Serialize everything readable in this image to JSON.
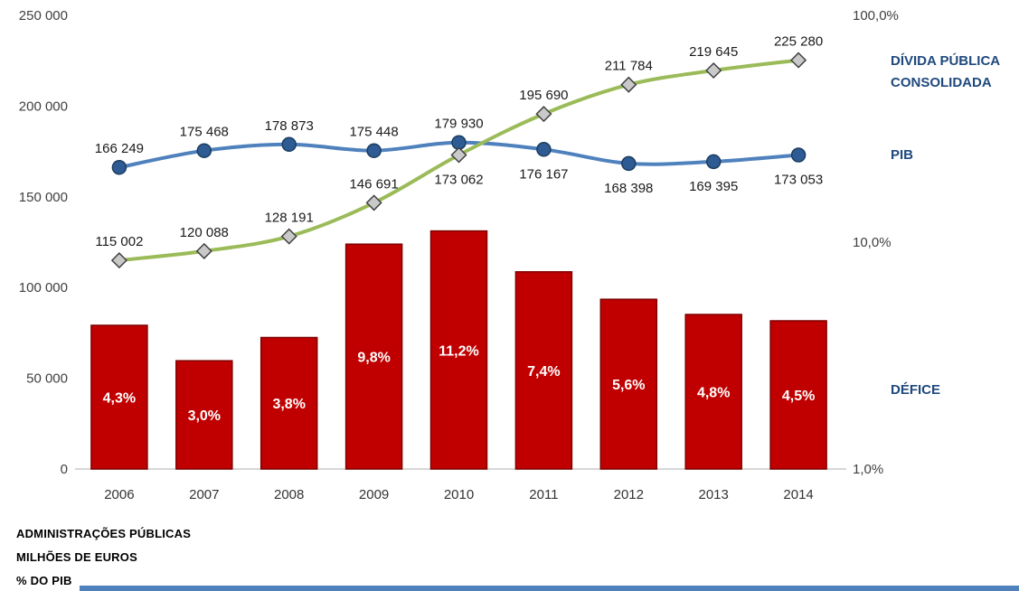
{
  "chart_data": {
    "type": "combo",
    "title": "",
    "categories": [
      "2006",
      "2007",
      "2008",
      "2009",
      "2010",
      "2011",
      "2012",
      "2013",
      "2014"
    ],
    "series": [
      {
        "name": "DÉFICE",
        "type": "bar",
        "axis": "right-log",
        "unit": "% do PIB",
        "values": [
          4.3,
          3.0,
          3.8,
          9.8,
          11.2,
          7.4,
          5.6,
          4.8,
          4.5
        ],
        "labels": [
          "4,3%",
          "3,0%",
          "3,8%",
          "9,8%",
          "11,2%",
          "7,4%",
          "5,6%",
          "4,8%",
          "4,5%"
        ],
        "color": "#C00000",
        "border_color": "#7F0000",
        "label_color": "#FFFFFF"
      },
      {
        "name": "PIB",
        "type": "line",
        "axis": "left",
        "unit": "milhões de euros",
        "values": [
          166249,
          175468,
          178873,
          175448,
          179930,
          176167,
          168398,
          169395,
          173053
        ],
        "labels": [
          "166 249",
          "175 468",
          "178 873",
          "175 448",
          "179 930",
          "176 167",
          "168 398",
          "169 395",
          "173 053"
        ],
        "label_positions": [
          "above",
          "above",
          "above",
          "above",
          "above",
          "below",
          "below",
          "below",
          "below"
        ],
        "color": "#4F81BD",
        "marker": "circle",
        "marker_fill": "#2E5B94",
        "marker_stroke": "#1C3C5E"
      },
      {
        "name": "DÍVIDA PÚBLICA CONSOLIDADA",
        "type": "line",
        "axis": "left",
        "unit": "milhões de euros",
        "values": [
          115002,
          120088,
          128191,
          146691,
          173062,
          195690,
          211784,
          219645,
          225280
        ],
        "labels": [
          "115 002",
          "120 088",
          "128 191",
          "146 691",
          "173 062",
          "195 690",
          "211 784",
          "219 645",
          "225 280"
        ],
        "label_positions": [
          "above",
          "above",
          "above",
          "above",
          "below",
          "above",
          "above",
          "above",
          "above"
        ],
        "color": "#9BBB59",
        "marker": "diamond",
        "marker_fill": "#C9C9C9",
        "marker_stroke": "#404040"
      }
    ],
    "left_axis": {
      "min": 0,
      "max": 250000,
      "tick_step": 50000,
      "ticks": [
        "0",
        "50 000",
        "100 000",
        "150 000",
        "200 000",
        "250 000"
      ]
    },
    "right_axis": {
      "scale": "log",
      "min": 1,
      "max": 100,
      "tick_values": [
        1,
        10,
        100
      ],
      "ticks": [
        "1,0%",
        "10,0%",
        "100,0%"
      ]
    },
    "grid": "off",
    "legend_position": "right",
    "legend": {
      "divida": "DÍVIDA PÚBLICA CONSOLIDADA",
      "pib": "PIB",
      "defice": "DÉFICE",
      "color": "#1F497D"
    },
    "footnotes": [
      "ADMINISTRAÇÕES PÚBLICAS",
      "MILHÕES DE EUROS",
      "% DO PIB"
    ],
    "accent_bar_color": "#4F81BD",
    "axis_text_color": "#404040",
    "data_label_color": "#1A1A1A"
  }
}
